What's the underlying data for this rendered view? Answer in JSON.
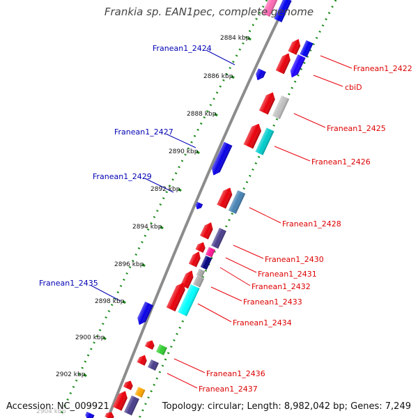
{
  "title": "Frankia sp. EAN1pec, complete genome",
  "footer": {
    "accession": "Accession: NC_009921",
    "summary": "Topology: circular; Length: 8,982,042 bp; Genes: 7,249"
  },
  "ticks": [
    "2884 kbp",
    "2886 kbp",
    "2888 kbp",
    "2890 kbp",
    "2892 kbp",
    "2894 kbp",
    "2896 kbp",
    "2898 kbp",
    "2900 kbp",
    "2902 kbp",
    "2904 kbp"
  ],
  "labels_forward": [
    "Franean1_2422",
    "cbiD",
    "Franean1_2425",
    "Franean1_2426",
    "Franean1_2428",
    "Franean1_2430",
    "Franean1_2431",
    "Franean1_2432",
    "Franean1_2433",
    "Franean1_2434",
    "Franean1_2436",
    "Franean1_2437"
  ],
  "labels_reverse": [
    "Franean1_2424",
    "Franean1_2427",
    "Franean1_2429",
    "Franean1_2435"
  ],
  "colors": {
    "cds": "#e8000a",
    "reverse_cds": "#0a00e6",
    "backbone": "#8c8c8c",
    "gc_ticks": "#1e8c1e",
    "label_forward": "#dd0000",
    "label_reverse": "#0000b4",
    "cog_colors": [
      "#0000ee",
      "#1e00ff",
      "#c0c0c0",
      "#00cccc",
      "#4682b4",
      "#483d8b",
      "#ff1493",
      "#000080",
      "#a9a9a9",
      "#00ffff",
      "#32cd32",
      "#ffa500",
      "#ff69b4"
    ]
  }
}
